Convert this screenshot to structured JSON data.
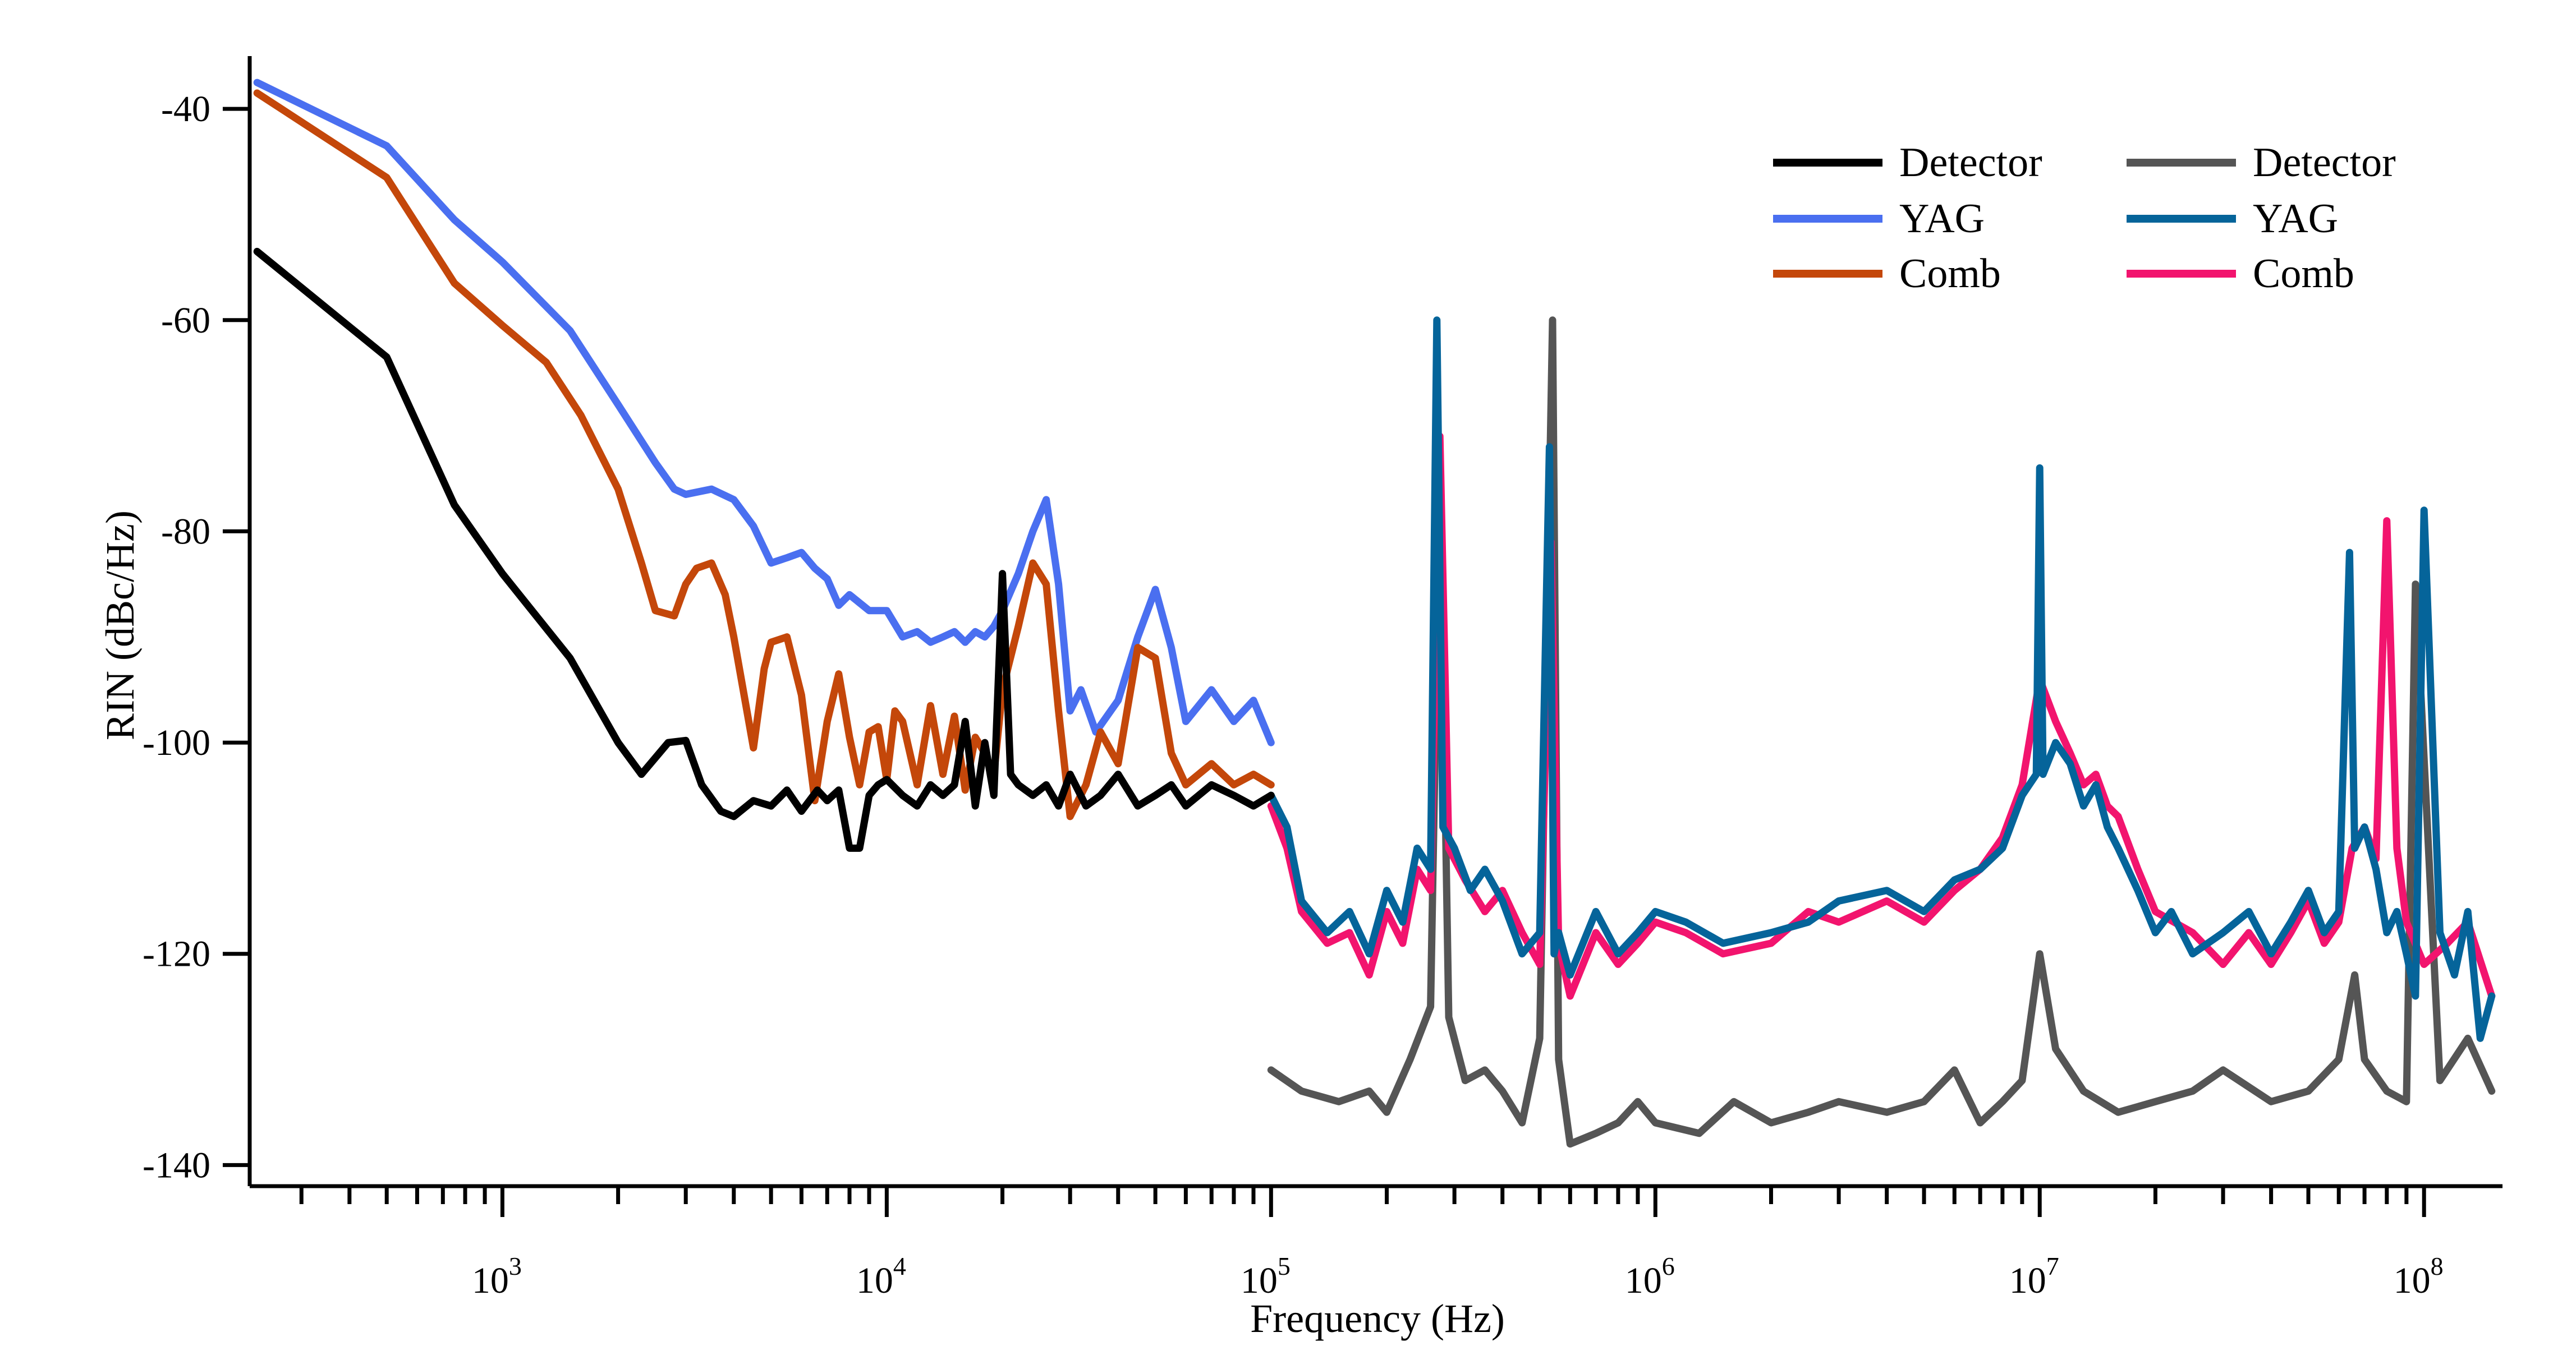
{
  "chart_data": {
    "type": "line",
    "title": "",
    "xlabel": "Frequency (Hz)",
    "ylabel": "RIN (dBc/Hz)",
    "x_scale": "log",
    "xlim": [
      220,
      160000000
    ],
    "ylim": [
      -142,
      -35
    ],
    "grid": false,
    "legend_position": "top-right",
    "x_ticks": [
      {
        "base": "10",
        "exp": "3",
        "value": 1000
      },
      {
        "base": "10",
        "exp": "4",
        "value": 10000
      },
      {
        "base": "10",
        "exp": "5",
        "value": 100000
      },
      {
        "base": "10",
        "exp": "6",
        "value": 1000000
      },
      {
        "base": "10",
        "exp": "7",
        "value": 10000000
      },
      {
        "base": "10",
        "exp": "8",
        "value": 100000000
      }
    ],
    "y_ticks": [
      {
        "label": "-40",
        "value": -40
      },
      {
        "label": "-60",
        "value": -60
      },
      {
        "label": "-80",
        "value": -80
      },
      {
        "label": "-100",
        "value": -100
      },
      {
        "label": "-120",
        "value": -120
      },
      {
        "label": "-140",
        "value": -140
      }
    ],
    "legend": [
      {
        "name": "Detector",
        "color": "#000000"
      },
      {
        "name": "YAG",
        "color": "#4A6FF0"
      },
      {
        "name": "Comb",
        "color": "#C4470A"
      },
      {
        "name": "Detector",
        "color": "#555555"
      },
      {
        "name": "YAG",
        "color": "#05649A"
      },
      {
        "name": "Comb",
        "color": "#F2146E"
      }
    ],
    "series": [
      {
        "name": "Detector",
        "range": "low",
        "color": "#000000",
        "x": [
          230,
          500,
          750,
          1000,
          1500,
          2000,
          2300,
          2700,
          3000,
          3300,
          3700,
          4000,
          4500,
          5000,
          5500,
          6000,
          6600,
          7000,
          7500,
          8000,
          8500,
          9000,
          9500,
          10000,
          11000,
          12000,
          13000,
          14000,
          15000,
          16000,
          17000,
          18000,
          19000,
          20000,
          21000,
          22000,
          24000,
          26000,
          28000,
          30000,
          33000,
          36000,
          40000,
          45000,
          50000,
          55000,
          60000,
          70000,
          80000,
          90000,
          100000
        ],
        "y": [
          -53.5,
          -63.5,
          -77.5,
          -84,
          -92,
          -100,
          -103,
          -100,
          -99.8,
          -104,
          -106.5,
          -107,
          -105.5,
          -106,
          -104.5,
          -106.5,
          -104.5,
          -105.5,
          -104.5,
          -110,
          -110,
          -105,
          -104,
          -103.5,
          -105,
          -106,
          -104,
          -105,
          -104,
          -98,
          -106,
          -100,
          -105,
          -84,
          -103,
          -104,
          -105,
          -104,
          -106,
          -103,
          -106,
          -105,
          -103,
          -106,
          -105,
          -104,
          -106,
          -104,
          -105,
          -106,
          -105
        ]
      },
      {
        "name": "YAG",
        "range": "low",
        "color": "#4A6FF0",
        "x": [
          230,
          500,
          750,
          1000,
          1500,
          2000,
          2500,
          2800,
          3000,
          3500,
          4000,
          4500,
          5000,
          5500,
          6000,
          6500,
          7000,
          7500,
          8000,
          9000,
          10000,
          11000,
          12000,
          13000,
          14000,
          15000,
          16000,
          17000,
          18000,
          19000,
          20000,
          22000,
          24000,
          26000,
          28000,
          30000,
          32000,
          35000,
          40000,
          45000,
          50000,
          55000,
          60000,
          70000,
          80000,
          90000,
          100000
        ],
        "y": [
          -37.5,
          -43.5,
          -50.5,
          -54.5,
          -61,
          -68,
          -73.5,
          -76,
          -76.5,
          -76,
          -77,
          -79.5,
          -83,
          -82.5,
          -82,
          -83.5,
          -84.5,
          -87,
          -86,
          -87.5,
          -87.5,
          -90,
          -89.5,
          -90.5,
          -90,
          -89.5,
          -90.5,
          -89.5,
          -90,
          -89,
          -87.5,
          -84,
          -80,
          -77,
          -85,
          -97,
          -95,
          -99,
          -96,
          -90,
          -85.5,
          -91,
          -98,
          -95,
          -98,
          -96,
          -100
        ]
      },
      {
        "name": "Comb",
        "range": "low",
        "color": "#C4470A",
        "x": [
          230,
          500,
          750,
          1000,
          1300,
          1600,
          2000,
          2300,
          2500,
          2800,
          3000,
          3200,
          3500,
          3800,
          4000,
          4500,
          4800,
          5000,
          5500,
          6000,
          6500,
          7000,
          7500,
          8000,
          8500,
          9000,
          9500,
          10000,
          10500,
          11000,
          12000,
          13000,
          14000,
          15000,
          16000,
          17000,
          18000,
          19000,
          20000,
          22000,
          24000,
          26000,
          28000,
          30000,
          33000,
          36000,
          40000,
          45000,
          50000,
          55000,
          60000,
          70000,
          80000,
          90000,
          100000
        ],
        "y": [
          -38.5,
          -46.5,
          -56.5,
          -60.5,
          -64,
          -69,
          -76,
          -83,
          -87.5,
          -88,
          -85,
          -83.5,
          -83,
          -86,
          -90,
          -100.5,
          -93,
          -90.5,
          -90,
          -95.5,
          -105.5,
          -98,
          -93.5,
          -99.5,
          -104,
          -99,
          -98.5,
          -103.5,
          -97,
          -98,
          -104,
          -96.5,
          -103,
          -97.5,
          -104.5,
          -99.5,
          -101,
          -103,
          -95,
          -89,
          -83,
          -85,
          -97,
          -107,
          -104,
          -99,
          -102,
          -91,
          -92,
          -101,
          -104,
          -102,
          -104,
          -103,
          -104
        ]
      },
      {
        "name": "Detector",
        "range": "high",
        "color": "#555555",
        "x": [
          100000,
          120000,
          150000,
          180000,
          200000,
          230000,
          260000,
          275000,
          290000,
          320000,
          360000,
          400000,
          450000,
          500000,
          540000,
          560000,
          600000,
          700000,
          800000,
          900000,
          1000000,
          1300000,
          1600000,
          2000000,
          2500000,
          3000000,
          4000000,
          5000000,
          6000000,
          7000000,
          8000000,
          9000000,
          10000000,
          11000000,
          13000000,
          16000000,
          20000000,
          25000000,
          30000000,
          40000000,
          50000000,
          60000000,
          66000000,
          70000000,
          80000000,
          90000000,
          95000000,
          110000000,
          130000000,
          150000000
        ],
        "y": [
          -131,
          -133,
          -134,
          -133,
          -135,
          -130,
          -125,
          -75,
          -126,
          -132,
          -131,
          -133,
          -136,
          -128,
          -60,
          -130,
          -138,
          -137,
          -136,
          -134,
          -136,
          -137,
          -134,
          -136,
          -135,
          -134,
          -135,
          -134,
          -131,
          -136,
          -134,
          -132,
          -120,
          -129,
          -133,
          -135,
          -134,
          -133,
          -131,
          -134,
          -133,
          -130,
          -122,
          -130,
          -133,
          -134,
          -85,
          -132,
          -128,
          -133
        ]
      },
      {
        "name": "YAG",
        "range": "high",
        "color": "#05649A",
        "x": [
          100000,
          110000,
          120000,
          140000,
          160000,
          180000,
          200000,
          220000,
          240000,
          260000,
          270000,
          280000,
          300000,
          330000,
          360000,
          400000,
          450000,
          500000,
          530000,
          545000,
          560000,
          600000,
          700000,
          800000,
          900000,
          1000000,
          1200000,
          1500000,
          2000000,
          2500000,
          3000000,
          4000000,
          5000000,
          6000000,
          7000000,
          8000000,
          9000000,
          9800000,
          10000000,
          10200000,
          11000000,
          12000000,
          13000000,
          14000000,
          15000000,
          16000000,
          18000000,
          20000000,
          22000000,
          25000000,
          30000000,
          35000000,
          40000000,
          45000000,
          50000000,
          55000000,
          60000000,
          64000000,
          66000000,
          70000000,
          75000000,
          80000000,
          85000000,
          90000000,
          95000000,
          100000000,
          110000000,
          120000000,
          130000000,
          140000000,
          150000000
        ],
        "y": [
          -105,
          -108,
          -115,
          -118,
          -116,
          -120,
          -114,
          -117,
          -110,
          -112,
          -60,
          -108,
          -110,
          -114,
          -112,
          -115,
          -120,
          -118,
          -72,
          -120,
          -118,
          -122,
          -116,
          -120,
          -118,
          -116,
          -117,
          -119,
          -118,
          -117,
          -115,
          -114,
          -116,
          -113,
          -112,
          -110,
          -105,
          -103,
          -74,
          -103,
          -100,
          -102,
          -106,
          -104,
          -108,
          -110,
          -114,
          -118,
          -116,
          -120,
          -118,
          -116,
          -120,
          -117,
          -114,
          -118,
          -116,
          -82,
          -110,
          -108,
          -112,
          -118,
          -116,
          -120,
          -124,
          -78,
          -118,
          -122,
          -116,
          -128,
          -124
        ]
      },
      {
        "name": "Comb",
        "range": "high",
        "color": "#F2146E",
        "x": [
          100000,
          110000,
          120000,
          140000,
          160000,
          180000,
          200000,
          220000,
          240000,
          260000,
          275000,
          290000,
          320000,
          360000,
          400000,
          450000,
          500000,
          535000,
          560000,
          600000,
          700000,
          800000,
          900000,
          1000000,
          1200000,
          1500000,
          2000000,
          2500000,
          3000000,
          4000000,
          5000000,
          6000000,
          7000000,
          8000000,
          9000000,
          10000000,
          11000000,
          12000000,
          13000000,
          14000000,
          15000000,
          16000000,
          18000000,
          20000000,
          25000000,
          30000000,
          35000000,
          40000000,
          45000000,
          50000000,
          55000000,
          60000000,
          65000000,
          70000000,
          75000000,
          80000000,
          85000000,
          90000000,
          100000000,
          115000000,
          130000000,
          150000000
        ],
        "y": [
          -106,
          -110,
          -116,
          -119,
          -118,
          -122,
          -116,
          -119,
          -112,
          -114,
          -71,
          -110,
          -113,
          -116,
          -114,
          -118,
          -121,
          -81,
          -119,
          -124,
          -118,
          -121,
          -119,
          -117,
          -118,
          -120,
          -119,
          -116,
          -117,
          -115,
          -117,
          -114,
          -112,
          -109,
          -104,
          -94,
          -98,
          -101,
          -104,
          -103,
          -106,
          -107,
          -112,
          -116,
          -118,
          -121,
          -118,
          -121,
          -118,
          -115,
          -119,
          -117,
          -110,
          -108,
          -111,
          -79,
          -110,
          -117,
          -121,
          -119,
          -117,
          -124
        ]
      }
    ]
  }
}
